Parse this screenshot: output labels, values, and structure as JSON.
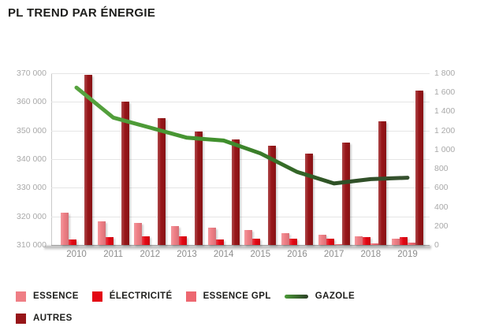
{
  "title": "PL TREND PAR ÉNERGIE",
  "colors": {
    "essence": "#ef7e85",
    "electricite": "#e30613",
    "essence_gpl": "#ed6770",
    "autres": "#971518",
    "gazole_start": "#4a9a37",
    "gazole_end": "#2c3f26",
    "grid": "#e5e5e5",
    "axis_text": "#a9a9a9",
    "year_text": "#8d8d8d",
    "title_text": "#1d1d1b"
  },
  "chart_data": {
    "type": "bar",
    "subtype": "grouped bars with secondary line series (dual axis)",
    "title": "PL TREND PAR ÉNERGIE",
    "categories": [
      "2010",
      "2011",
      "2012",
      "2013",
      "2014",
      "2015",
      "2016",
      "2017",
      "2018",
      "2019"
    ],
    "series": [
      {
        "name": "ESSENCE",
        "type": "bar",
        "axis": "right",
        "color": "#ef7e85",
        "values": [
          340,
          250,
          230,
          195,
          180,
          155,
          125,
          105,
          95,
          65
        ]
      },
      {
        "name": "ÉLECTRICITÉ",
        "type": "bar",
        "axis": "right",
        "color": "#e30613",
        "values": [
          55,
          85,
          90,
          90,
          60,
          70,
          65,
          70,
          80,
          85
        ]
      },
      {
        "name": "ESSENCE GPL",
        "type": "bar",
        "axis": "right",
        "color": "#ed6770",
        "values": [
          0,
          0,
          0,
          0,
          0,
          0,
          0,
          10,
          15,
          25
        ]
      },
      {
        "name": "AUTRES",
        "type": "bar",
        "axis": "right",
        "color": "#971518",
        "values": [
          1780,
          1500,
          1330,
          1190,
          1110,
          1040,
          960,
          1070,
          1300,
          1620
        ]
      },
      {
        "name": "GAZOLE",
        "type": "line",
        "axis": "left",
        "color": "#3f8f2c",
        "values": [
          365000,
          354500,
          351000,
          347500,
          346500,
          342000,
          335500,
          331500,
          333000,
          333500
        ]
      }
    ],
    "left_axis": {
      "min": 310000,
      "max": 370000,
      "step": 10000,
      "tick_labels_top_to_bottom": [
        "370 000",
        "360 000",
        "350 000",
        "340 000",
        "330 000",
        "320 000",
        "310 000"
      ]
    },
    "right_axis": {
      "min": 0,
      "max": 1800,
      "step": 200,
      "tick_labels_top_to_bottom": [
        "1 800",
        "1 600",
        "1 400",
        "1 200",
        "1 000",
        "800",
        "600",
        "400",
        "200",
        "0"
      ]
    },
    "grid": "horizontal gridlines on",
    "legend_position": "bottom-left, two rows"
  },
  "legend": {
    "rows": [
      [
        {
          "label": "ESSENCE",
          "swatch": "bar",
          "color": "#ef7e85"
        },
        {
          "label": "ÉLECTRICITÉ",
          "swatch": "bar",
          "color": "#e30613"
        },
        {
          "label": "ESSENCE GPL",
          "swatch": "bar",
          "color": "#ed6770"
        },
        {
          "label": "GAZOLE",
          "swatch": "line",
          "color": "#3f8f2c"
        }
      ],
      [
        {
          "label": "AUTRES",
          "swatch": "bar",
          "color": "#971518"
        }
      ]
    ]
  }
}
